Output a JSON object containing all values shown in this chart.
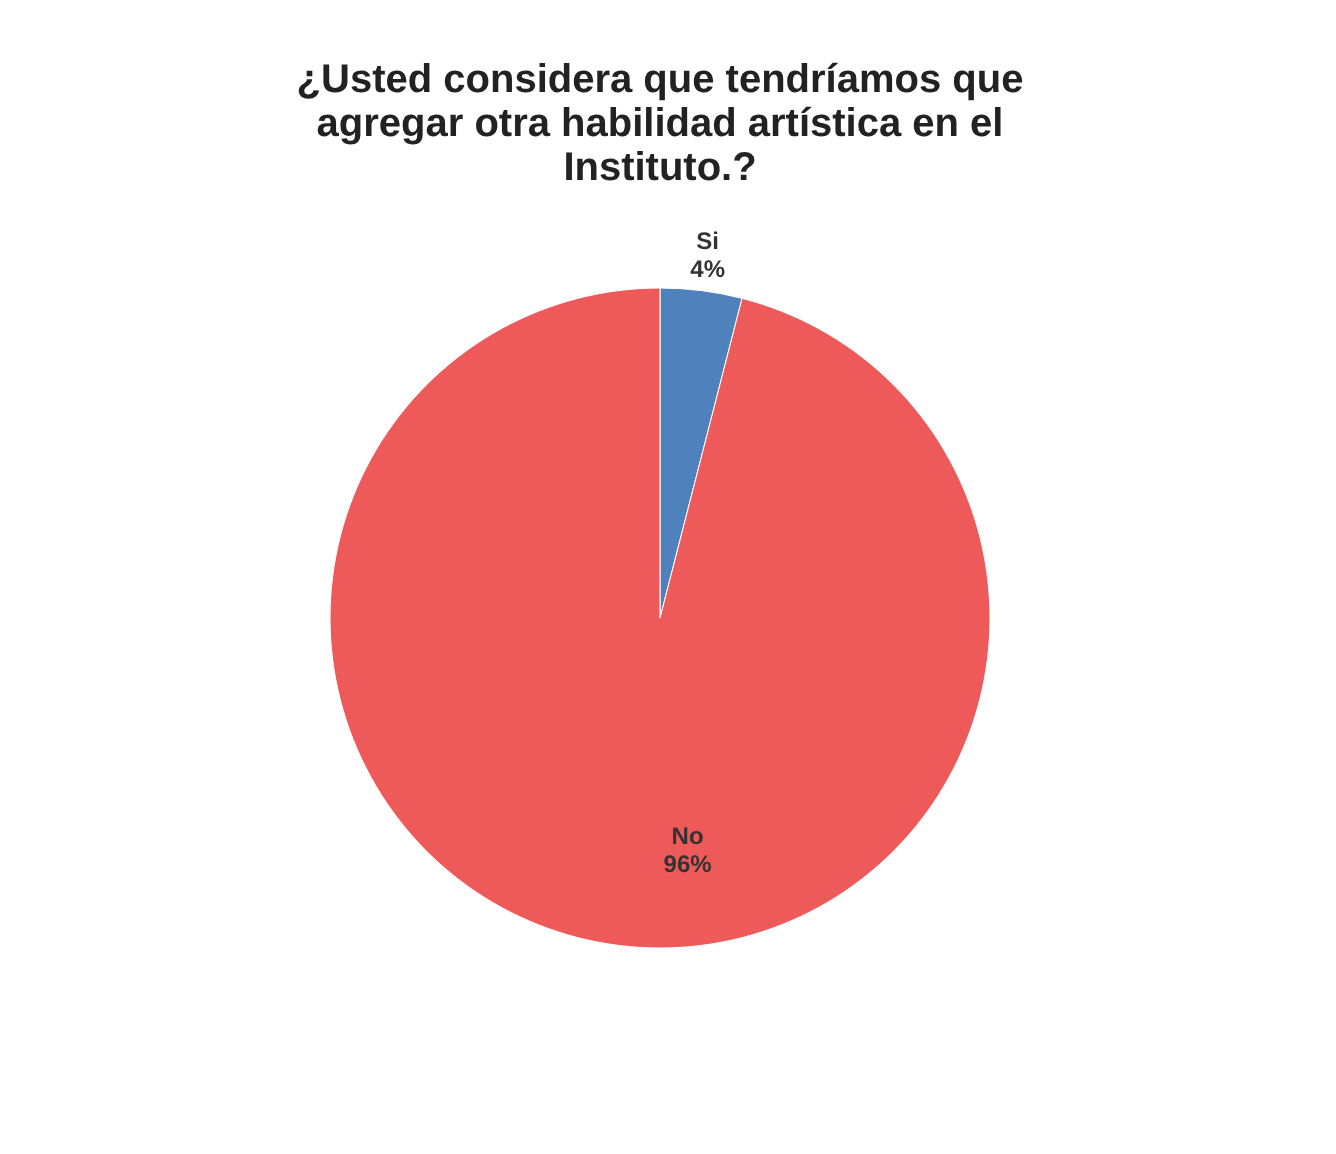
{
  "chart_data": {
    "type": "pie",
    "title": "¿Usted considera que tendríamos que agregar otra habilidad artística en el Instituto.?",
    "categories": [
      "Si",
      "No"
    ],
    "values": [
      4,
      96
    ],
    "colors": [
      "#4f81bd",
      "#ee5a5a"
    ],
    "value_labels": [
      "4%",
      "96%"
    ],
    "legend": false
  }
}
